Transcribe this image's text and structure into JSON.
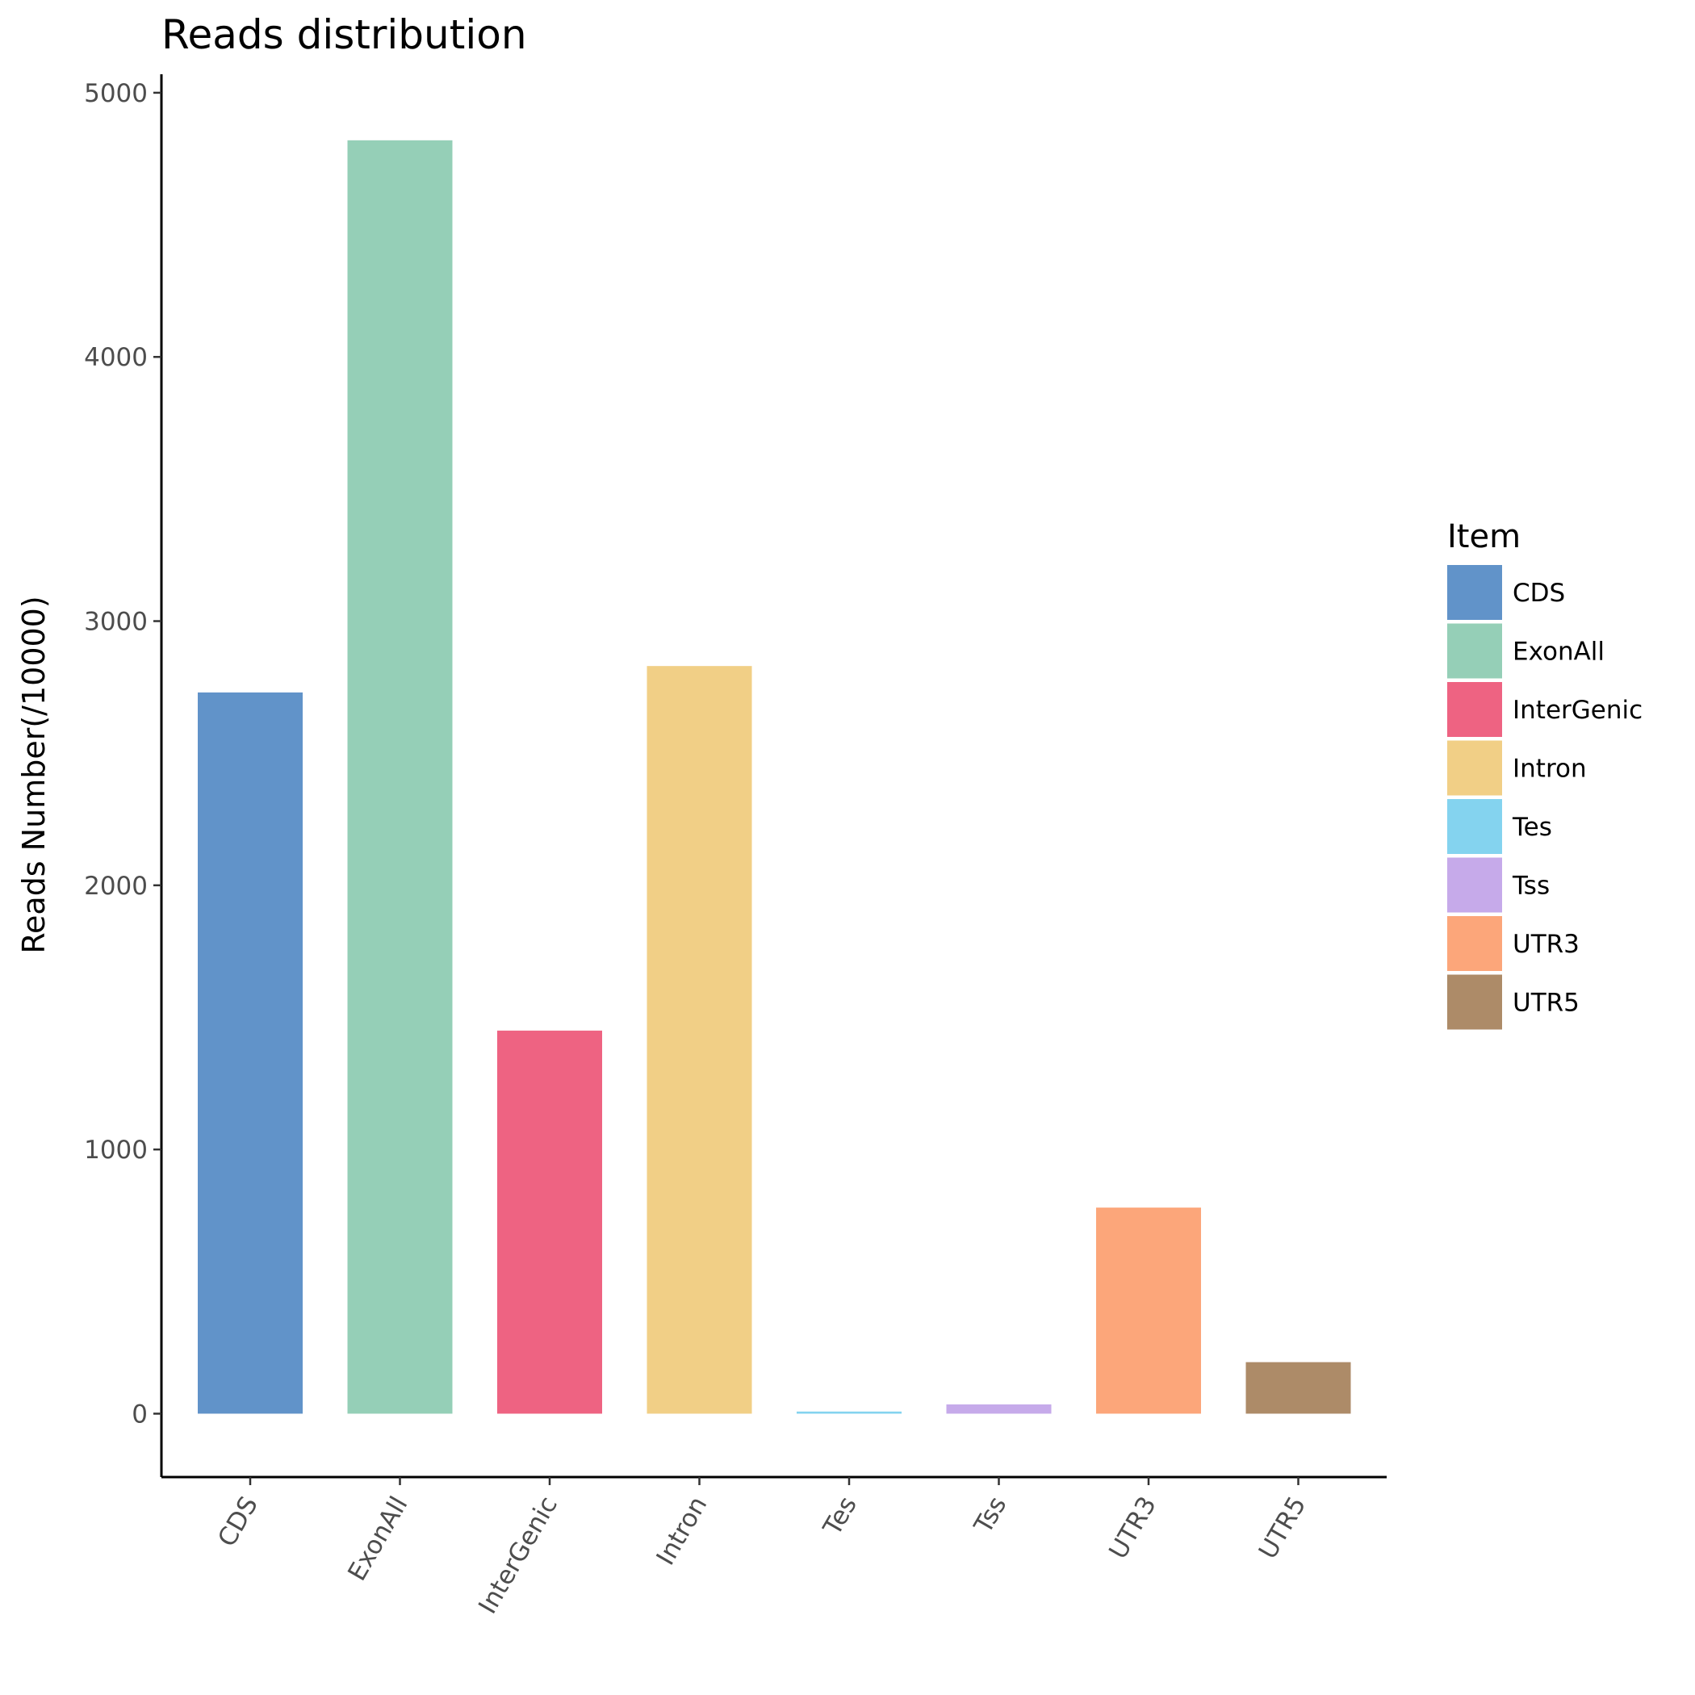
{
  "chart_data": {
    "type": "bar",
    "title": "Reads distribution",
    "xlabel": "",
    "ylabel": "Reads Number(/10000)",
    "categories": [
      "CDS",
      "ExonAll",
      "InterGenic",
      "Intron",
      "Tes",
      "Tss",
      "UTR3",
      "UTR5"
    ],
    "values": [
      2730,
      4820,
      1450,
      2830,
      8,
      35,
      780,
      195
    ],
    "colors": [
      "#6193c9",
      "#95cfb7",
      "#ee6382",
      "#f1cf86",
      "#84d3ef",
      "#c6aaea",
      "#fca67a",
      "#ad8b68"
    ],
    "ylim": [
      -240,
      5070
    ],
    "yticks": [
      0,
      1000,
      2000,
      3000,
      4000,
      5000
    ],
    "grid": false,
    "legend": {
      "title": "Item",
      "position": "right",
      "items": [
        "CDS",
        "ExonAll",
        "InterGenic",
        "Intron",
        "Tes",
        "Tss",
        "UTR3",
        "UTR5"
      ]
    }
  }
}
